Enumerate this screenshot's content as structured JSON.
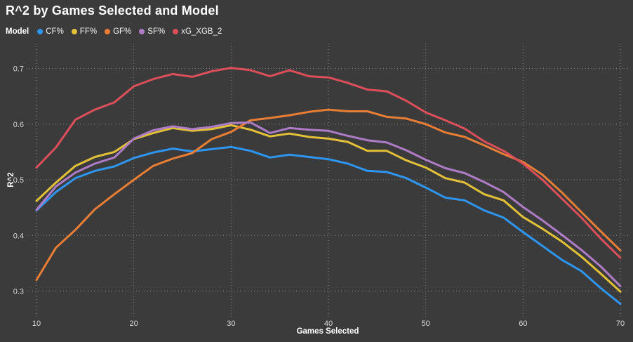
{
  "title": "R^2 by Games Selected and Model",
  "legend": {
    "label": "Model",
    "items": [
      {
        "label": "CF%",
        "color": "#2e96f0"
      },
      {
        "label": "FF%",
        "color": "#e2c139"
      },
      {
        "label": "GF%",
        "color": "#e87e35"
      },
      {
        "label": "SF%",
        "color": "#ae7cc7"
      },
      {
        "label": "xG_XGB_2",
        "color": "#dc4f5a"
      }
    ]
  },
  "colors": {
    "background": "#3b3b3b",
    "grid": "#9a9a9a",
    "tick_text": "#d9d9d9",
    "text": "#ffffff"
  },
  "chart_data": {
    "type": "line",
    "title": "R^2 by Games Selected and Model",
    "xlabel": "Games Selected",
    "ylabel": "R^2",
    "xlim": [
      10,
      70
    ],
    "ylim": [
      0.3,
      0.7
    ],
    "grid": "dotted",
    "legend_position": "top-left",
    "xticks": [
      {
        "v": 10,
        "label": "10"
      },
      {
        "v": 20,
        "label": "20"
      },
      {
        "v": 30,
        "label": "30"
      },
      {
        "v": 40,
        "label": "40"
      },
      {
        "v": 50,
        "label": "50"
      },
      {
        "v": 60,
        "label": "60"
      },
      {
        "v": 70,
        "label": "70"
      }
    ],
    "yticks": [
      {
        "v": 0.3,
        "label": "0.3"
      },
      {
        "v": 0.4,
        "label": "0.4"
      },
      {
        "v": 0.5,
        "label": "0.5"
      },
      {
        "v": 0.6,
        "label": "0.6"
      },
      {
        "v": 0.7,
        "label": "0.7"
      }
    ],
    "x": [
      10,
      12,
      14,
      16,
      18,
      20,
      22,
      24,
      26,
      28,
      30,
      32,
      34,
      36,
      38,
      40,
      42,
      44,
      46,
      48,
      50,
      52,
      54,
      56,
      58,
      60,
      62,
      64,
      66,
      68,
      70
    ],
    "series": [
      {
        "name": "CF%",
        "color": "#2e96f0",
        "values": [
          0.445,
          0.478,
          0.503,
          0.516,
          0.524,
          0.539,
          0.549,
          0.556,
          0.551,
          0.555,
          0.559,
          0.552,
          0.54,
          0.545,
          0.541,
          0.537,
          0.529,
          0.516,
          0.514,
          0.503,
          0.486,
          0.468,
          0.463,
          0.445,
          0.432,
          0.406,
          0.381,
          0.356,
          0.336,
          0.305,
          0.277
        ]
      },
      {
        "name": "FF%",
        "color": "#e2c139",
        "values": [
          0.462,
          0.495,
          0.525,
          0.541,
          0.55,
          0.573,
          0.584,
          0.593,
          0.588,
          0.591,
          0.598,
          0.59,
          0.578,
          0.583,
          0.577,
          0.574,
          0.568,
          0.552,
          0.552,
          0.535,
          0.522,
          0.503,
          0.495,
          0.474,
          0.463,
          0.433,
          0.412,
          0.389,
          0.362,
          0.331,
          0.299
        ]
      },
      {
        "name": "GF%",
        "color": "#e87e35",
        "values": [
          0.32,
          0.378,
          0.41,
          0.447,
          0.474,
          0.5,
          0.525,
          0.538,
          0.548,
          0.573,
          0.586,
          0.607,
          0.611,
          0.616,
          0.622,
          0.626,
          0.623,
          0.623,
          0.613,
          0.61,
          0.6,
          0.585,
          0.577,
          0.562,
          0.546,
          0.532,
          0.509,
          0.477,
          0.442,
          0.407,
          0.373
        ]
      },
      {
        "name": "SF%",
        "color": "#ae7cc7",
        "values": [
          0.446,
          0.488,
          0.513,
          0.529,
          0.54,
          0.574,
          0.589,
          0.596,
          0.591,
          0.595,
          0.602,
          0.603,
          0.584,
          0.593,
          0.59,
          0.588,
          0.579,
          0.571,
          0.567,
          0.553,
          0.536,
          0.521,
          0.512,
          0.496,
          0.478,
          0.451,
          0.427,
          0.401,
          0.374,
          0.344,
          0.309
        ]
      },
      {
        "name": "xG_XGB_2",
        "color": "#dc4f5a",
        "values": [
          0.522,
          0.558,
          0.608,
          0.626,
          0.639,
          0.668,
          0.681,
          0.69,
          0.685,
          0.695,
          0.701,
          0.697,
          0.686,
          0.697,
          0.686,
          0.684,
          0.674,
          0.662,
          0.659,
          0.642,
          0.621,
          0.607,
          0.592,
          0.569,
          0.552,
          0.529,
          0.5,
          0.466,
          0.432,
          0.394,
          0.36
        ]
      }
    ]
  }
}
